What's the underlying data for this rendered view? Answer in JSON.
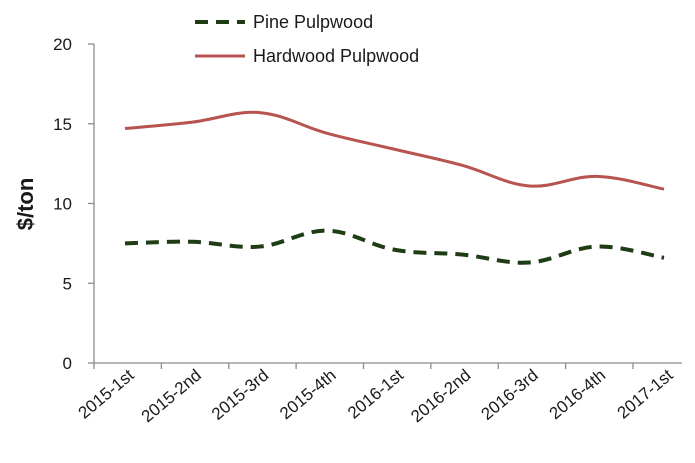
{
  "chart_data": {
    "type": "line",
    "title": "",
    "xlabel": "",
    "ylabel": "$/ton",
    "categories": [
      "2015-1st",
      "2015-2nd",
      "2015-3rd",
      "2015-4th",
      "2016-1st",
      "2016-2nd",
      "2016-3rd",
      "2016-4th",
      "2017-1st"
    ],
    "ylim": [
      0,
      20
    ],
    "yticks": [
      "0",
      "5",
      "10",
      "15",
      "20"
    ],
    "grid": false,
    "legend_position": "top-left",
    "series": [
      {
        "name": "Pine Pulpwood",
        "values": [
          7.5,
          7.6,
          7.3,
          8.3,
          7.1,
          6.8,
          6.3,
          7.3,
          6.6
        ],
        "color": "#1e3d14",
        "style": "dashed"
      },
      {
        "name": "Hardwood Pulpwood",
        "values": [
          14.7,
          15.1,
          15.7,
          14.4,
          13.4,
          12.4,
          11.1,
          11.7,
          10.9
        ],
        "color": "#b85450",
        "style": "solid"
      }
    ]
  }
}
